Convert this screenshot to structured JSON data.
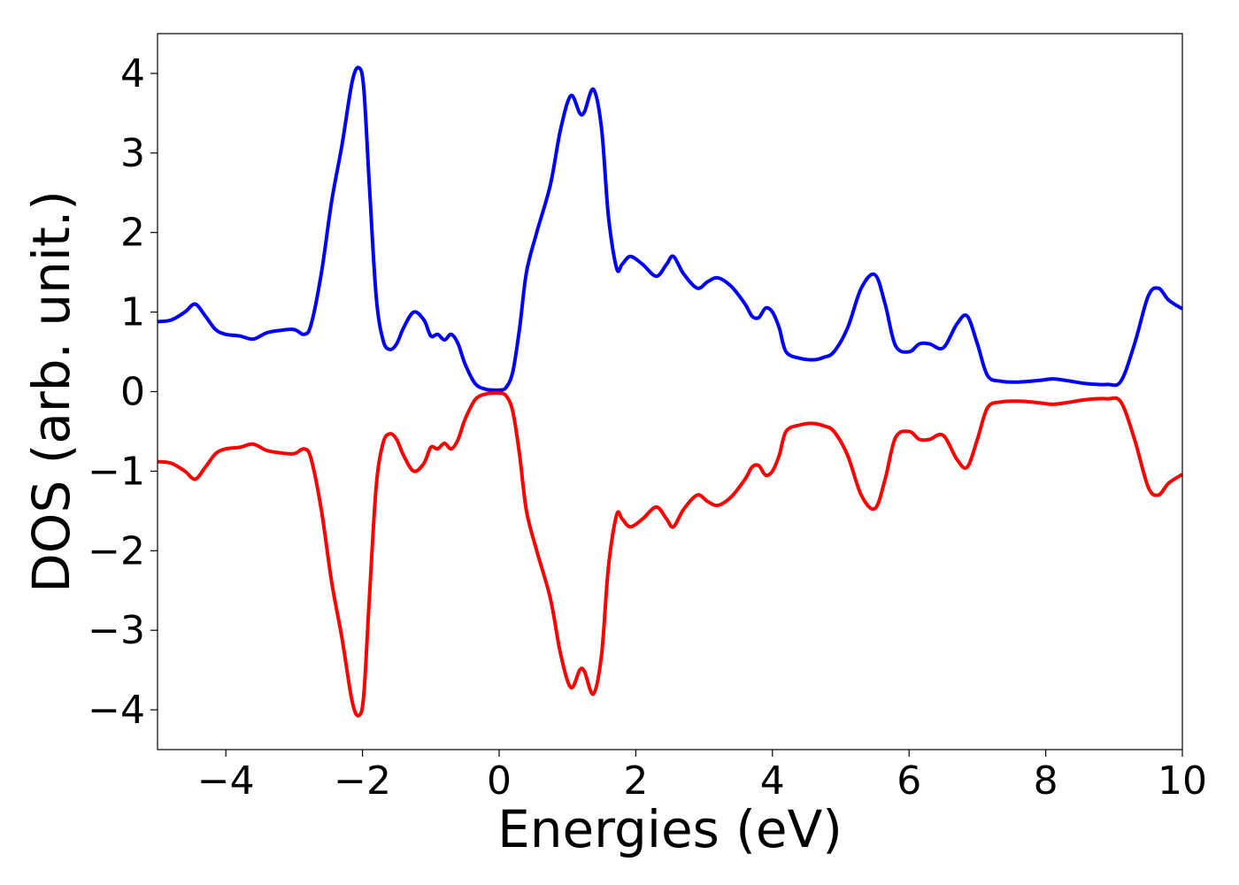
{
  "chart_data": {
    "type": "line",
    "title": "",
    "xlabel": "Energies (eV)",
    "ylabel": "DOS (arb. unit.)",
    "xlim": [
      -5,
      10
    ],
    "ylim": [
      -4.5,
      4.5
    ],
    "xticks": [
      -4,
      -2,
      0,
      2,
      4,
      6,
      8,
      10
    ],
    "xtick_labels": [
      "−4",
      "−2",
      "0",
      "2",
      "4",
      "6",
      "8",
      "10"
    ],
    "yticks": [
      -4,
      -3,
      -2,
      -1,
      0,
      1,
      2,
      3,
      4
    ],
    "ytick_labels": [
      "−4",
      "−3",
      "−2",
      "−1",
      "0",
      "1",
      "2",
      "3",
      "4"
    ],
    "grid": false,
    "legend": false,
    "series": [
      {
        "color": "#0000ff",
        "x": [
          -5.0,
          -4.8,
          -4.6,
          -4.45,
          -4.3,
          -4.15,
          -4.0,
          -3.8,
          -3.6,
          -3.4,
          -3.2,
          -3.0,
          -2.85,
          -2.75,
          -2.6,
          -2.45,
          -2.3,
          -2.15,
          -2.05,
          -1.98,
          -1.9,
          -1.8,
          -1.7,
          -1.6,
          -1.5,
          -1.4,
          -1.25,
          -1.1,
          -1.0,
          -0.9,
          -0.8,
          -0.7,
          -0.6,
          -0.5,
          -0.35,
          -0.2,
          -0.1,
          0.0,
          0.1,
          0.2,
          0.3,
          0.4,
          0.55,
          0.75,
          0.9,
          1.05,
          1.18,
          1.25,
          1.38,
          1.5,
          1.6,
          1.72,
          1.8,
          1.92,
          2.1,
          2.3,
          2.45,
          2.55,
          2.7,
          2.9,
          3.05,
          3.2,
          3.4,
          3.6,
          3.7,
          3.8,
          3.9,
          4.0,
          4.1,
          4.2,
          4.4,
          4.6,
          4.75,
          4.9,
          5.1,
          5.3,
          5.5,
          5.65,
          5.8,
          6.0,
          6.15,
          6.3,
          6.5,
          6.7,
          6.85,
          7.0,
          7.15,
          7.35,
          7.6,
          7.9,
          8.1,
          8.3,
          8.6,
          8.9,
          9.1,
          9.3,
          9.5,
          9.65,
          9.8,
          10.0
        ],
        "values": [
          0.88,
          0.9,
          1.0,
          1.1,
          0.95,
          0.78,
          0.72,
          0.7,
          0.66,
          0.74,
          0.77,
          0.78,
          0.72,
          0.85,
          1.5,
          2.4,
          3.1,
          3.9,
          4.07,
          3.8,
          2.6,
          1.2,
          0.65,
          0.53,
          0.6,
          0.8,
          1.0,
          0.9,
          0.7,
          0.72,
          0.65,
          0.72,
          0.6,
          0.35,
          0.1,
          0.03,
          0.02,
          0.02,
          0.05,
          0.25,
          0.8,
          1.5,
          2.0,
          2.6,
          3.3,
          3.72,
          3.5,
          3.52,
          3.8,
          3.3,
          2.2,
          1.55,
          1.6,
          1.7,
          1.6,
          1.45,
          1.6,
          1.7,
          1.48,
          1.3,
          1.38,
          1.43,
          1.32,
          1.1,
          0.95,
          0.93,
          1.05,
          1.0,
          0.8,
          0.5,
          0.42,
          0.4,
          0.43,
          0.5,
          0.8,
          1.3,
          1.47,
          1.1,
          0.58,
          0.5,
          0.6,
          0.6,
          0.55,
          0.85,
          0.95,
          0.6,
          0.2,
          0.13,
          0.12,
          0.14,
          0.16,
          0.14,
          0.1,
          0.09,
          0.13,
          0.6,
          1.2,
          1.3,
          1.15,
          1.04
        ]
      },
      {
        "color": "#ff0000",
        "x": [
          -5.0,
          -4.8,
          -4.6,
          -4.45,
          -4.3,
          -4.15,
          -4.0,
          -3.8,
          -3.6,
          -3.4,
          -3.2,
          -3.0,
          -2.85,
          -2.75,
          -2.6,
          -2.45,
          -2.3,
          -2.15,
          -2.05,
          -1.98,
          -1.9,
          -1.8,
          -1.7,
          -1.6,
          -1.5,
          -1.4,
          -1.25,
          -1.1,
          -1.0,
          -0.9,
          -0.8,
          -0.7,
          -0.6,
          -0.5,
          -0.35,
          -0.2,
          -0.1,
          0.0,
          0.1,
          0.2,
          0.3,
          0.4,
          0.55,
          0.75,
          0.9,
          1.05,
          1.18,
          1.25,
          1.38,
          1.5,
          1.6,
          1.72,
          1.8,
          1.92,
          2.1,
          2.3,
          2.45,
          2.55,
          2.7,
          2.9,
          3.05,
          3.2,
          3.4,
          3.6,
          3.7,
          3.8,
          3.9,
          4.0,
          4.1,
          4.2,
          4.4,
          4.6,
          4.75,
          4.9,
          5.1,
          5.3,
          5.5,
          5.65,
          5.8,
          6.0,
          6.15,
          6.3,
          6.5,
          6.7,
          6.85,
          7.0,
          7.15,
          7.35,
          7.6,
          7.9,
          8.1,
          8.3,
          8.6,
          8.9,
          9.1,
          9.3,
          9.5,
          9.65,
          9.8,
          10.0
        ],
        "values": [
          -0.88,
          -0.9,
          -1.0,
          -1.1,
          -0.95,
          -0.78,
          -0.72,
          -0.7,
          -0.66,
          -0.74,
          -0.77,
          -0.78,
          -0.72,
          -0.85,
          -1.5,
          -2.4,
          -3.1,
          -3.9,
          -4.07,
          -3.8,
          -2.6,
          -1.2,
          -0.65,
          -0.53,
          -0.6,
          -0.8,
          -1.0,
          -0.9,
          -0.7,
          -0.72,
          -0.65,
          -0.72,
          -0.6,
          -0.35,
          -0.1,
          -0.03,
          -0.02,
          -0.02,
          -0.05,
          -0.25,
          -0.8,
          -1.5,
          -2.0,
          -2.6,
          -3.3,
          -3.72,
          -3.5,
          -3.52,
          -3.8,
          -3.3,
          -2.2,
          -1.55,
          -1.6,
          -1.7,
          -1.6,
          -1.45,
          -1.6,
          -1.7,
          -1.48,
          -1.3,
          -1.38,
          -1.43,
          -1.32,
          -1.1,
          -0.95,
          -0.93,
          -1.05,
          -1.0,
          -0.8,
          -0.5,
          -0.42,
          -0.4,
          -0.43,
          -0.5,
          -0.8,
          -1.3,
          -1.47,
          -1.1,
          -0.58,
          -0.5,
          -0.6,
          -0.6,
          -0.55,
          -0.85,
          -0.95,
          -0.6,
          -0.2,
          -0.13,
          -0.12,
          -0.14,
          -0.16,
          -0.14,
          -0.1,
          -0.09,
          -0.13,
          -0.6,
          -1.2,
          -1.3,
          -1.15,
          -1.04
        ]
      }
    ]
  }
}
